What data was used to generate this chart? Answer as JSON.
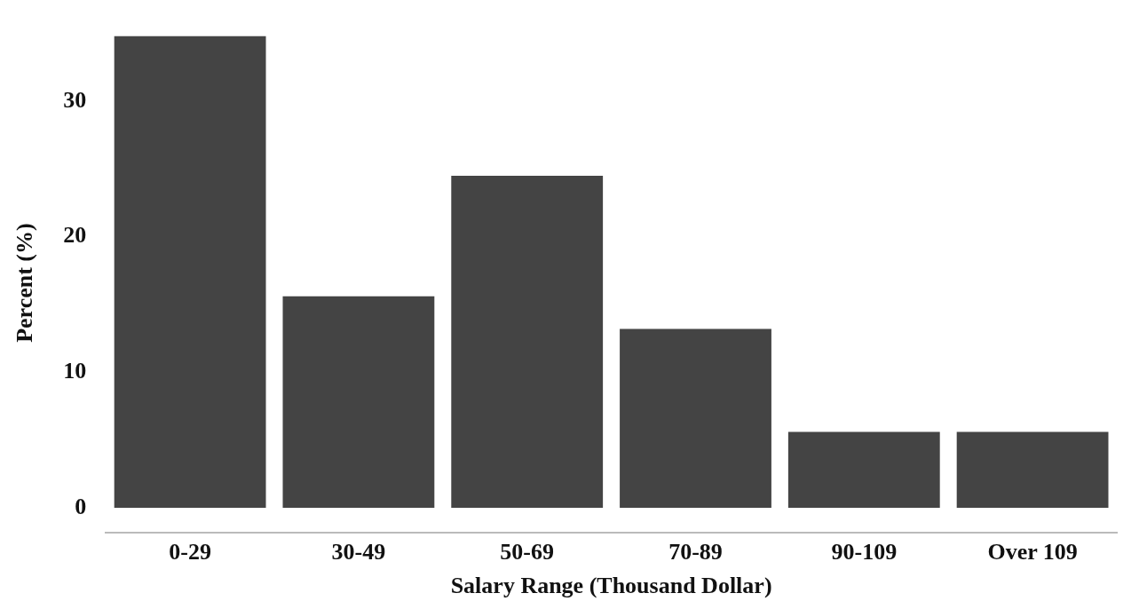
{
  "chart_data": {
    "type": "bar",
    "xlabel": "Salary Range (Thousand Dollar)",
    "ylabel": "Percent (%)",
    "categories": [
      "0-29",
      "30-49",
      "50-69",
      "70-89",
      "90-109",
      "Over 109"
    ],
    "values": [
      34.8,
      15.6,
      24.5,
      13.2,
      5.6,
      5.6
    ],
    "color": "#444444",
    "ylim": [
      -1.8,
      35
    ],
    "yticks": [
      0,
      10,
      20,
      30
    ],
    "grid": false,
    "legend": false
  }
}
